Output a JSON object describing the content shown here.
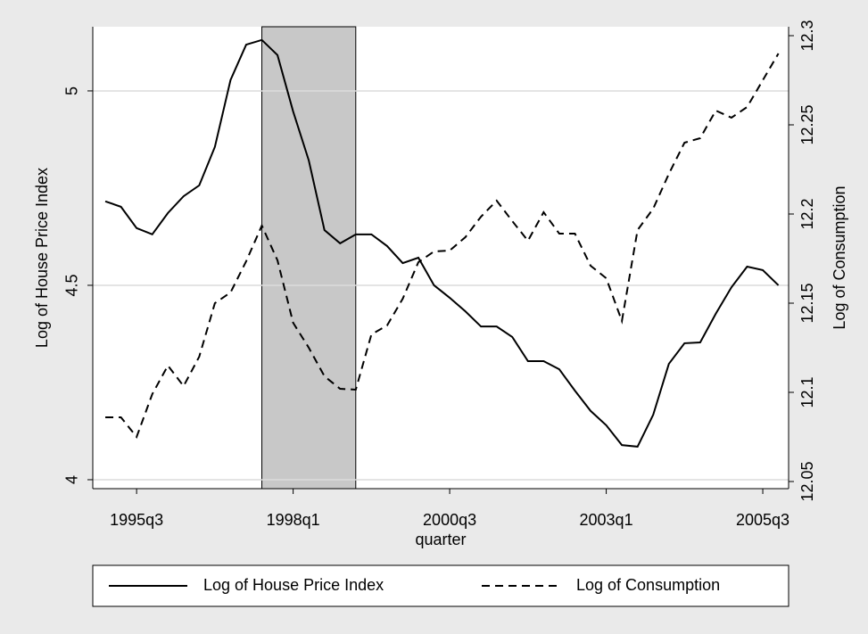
{
  "chart_data": {
    "type": "line",
    "x": [
      140,
      141,
      142,
      143,
      144,
      145,
      146,
      147,
      148,
      149,
      150,
      151,
      152,
      153,
      154,
      155,
      156,
      157,
      158,
      159,
      160,
      161,
      162,
      163,
      164,
      165,
      166,
      167,
      168,
      169,
      170,
      171,
      172,
      173,
      174,
      175,
      176,
      177,
      178,
      179,
      180,
      181,
      182,
      183
    ],
    "xlabel": "quarter",
    "ylabel": "Log of House Price Index",
    "y2label": "Log of Consumption",
    "xlim": [
      139.2,
      183.65
    ],
    "xticks": [
      {
        "value": 142,
        "label": "1995q3"
      },
      {
        "value": 152,
        "label": "1998q1"
      },
      {
        "value": 162,
        "label": "2000q3"
      },
      {
        "value": 172,
        "label": "2003q1"
      },
      {
        "value": 182,
        "label": "2005q3"
      }
    ],
    "ylim": [
      3.977,
      5.165
    ],
    "yticks": [
      4,
      4.5,
      5
    ],
    "y2lim": [
      12.046,
      12.305
    ],
    "y2ticks": [
      12.05,
      12.1,
      12.15,
      12.2,
      12.25,
      12.3
    ],
    "grid": true,
    "shade": [
      150,
      156
    ],
    "shade_color": "#c8c8c8",
    "legend": "bottom",
    "series": [
      {
        "name": "Log of House Price Index",
        "color": "#000000",
        "dash": "solid",
        "axis": "y",
        "values": [
          4.716,
          4.702,
          4.647,
          4.631,
          4.686,
          4.729,
          4.757,
          4.856,
          5.028,
          5.119,
          5.131,
          5.092,
          4.947,
          4.821,
          4.642,
          4.608,
          4.631,
          4.631,
          4.601,
          4.557,
          4.571,
          4.5,
          4.468,
          4.433,
          4.394,
          4.394,
          4.367,
          4.305,
          4.305,
          4.284,
          4.229,
          4.177,
          4.14,
          4.089,
          4.085,
          4.167,
          4.298,
          4.351,
          4.353,
          4.427,
          4.495,
          4.548,
          4.539,
          4.5
        ]
      },
      {
        "name": "Log of Consumption",
        "color": "#000000",
        "dash": "dashed",
        "axis": "y2",
        "values": [
          12.086,
          12.086,
          12.075,
          12.099,
          12.115,
          12.1035,
          12.12,
          12.15,
          12.156,
          12.1735,
          12.1935,
          12.174,
          12.139,
          12.125,
          12.109,
          12.102,
          12.1015,
          12.1325,
          12.1375,
          12.1525,
          12.173,
          12.179,
          12.1795,
          12.187,
          12.1985,
          12.2075,
          12.196,
          12.185,
          12.201,
          12.189,
          12.189,
          12.171,
          12.164,
          12.14,
          12.191,
          12.203,
          12.2225,
          12.24,
          12.2425,
          12.258,
          12.254,
          12.26,
          12.275,
          12.29
        ]
      }
    ]
  }
}
